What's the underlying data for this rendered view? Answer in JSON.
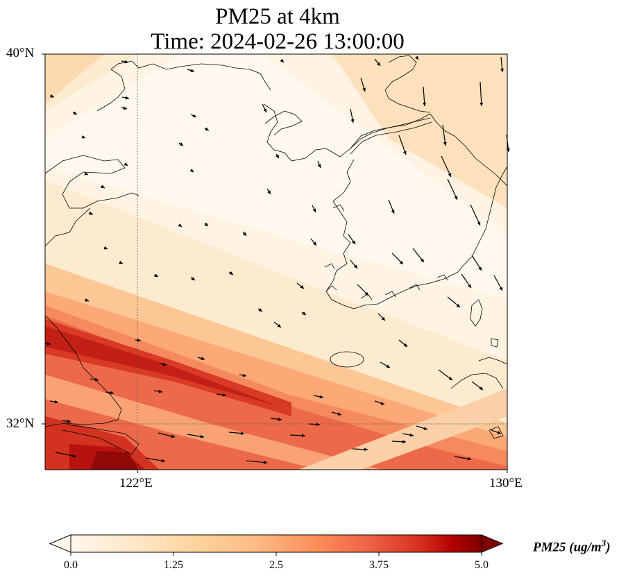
{
  "title": {
    "line1": "PM25 at 4km",
    "line2": "Time: 2024-02-26 13:00:00"
  },
  "axes": {
    "lat_labels": [
      "40°N",
      "32°N"
    ],
    "lon_labels": [
      "122°E",
      "130°E"
    ],
    "extent": {
      "lon": [
        120,
        130
      ],
      "lat": [
        31,
        40
      ]
    },
    "gridlines": {
      "lon": 122,
      "lat": 32,
      "style": "dotted"
    }
  },
  "colorbar": {
    "colormap": "OrRd",
    "ticks": [
      "0.0",
      "1.25",
      "2.5",
      "3.75",
      "5.0"
    ],
    "range": [
      0.0,
      5.0
    ],
    "extend": "both",
    "label_main": "PM25 (ug/m",
    "label_sup": "3",
    "label_end": ")"
  },
  "colors": {
    "low": "#fff7ec",
    "mid": "#fdbb84",
    "high": "#d7301f",
    "max": "#7f0000"
  }
}
